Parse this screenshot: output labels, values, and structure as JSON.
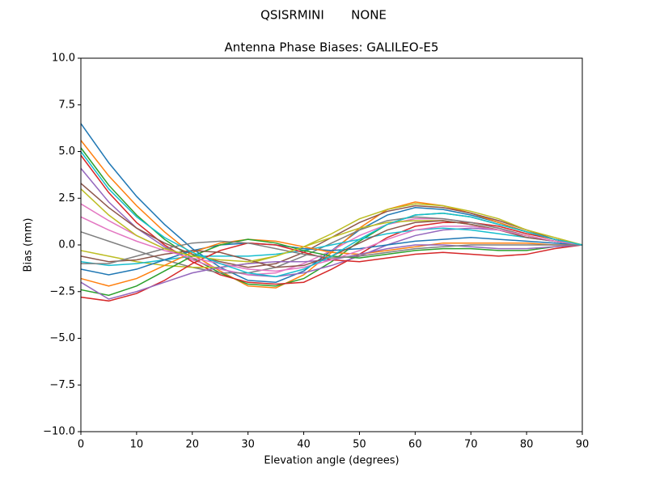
{
  "chart_data": {
    "type": "line",
    "suptitle": "QSISRMINI       NONE",
    "title": "Antenna Phase Biases: GALILEO-E5",
    "xlabel": "Elevation angle (degrees)",
    "ylabel": "Bias (mm)",
    "x": [
      0,
      5,
      10,
      15,
      20,
      25,
      30,
      35,
      40,
      45,
      50,
      55,
      60,
      65,
      70,
      75,
      80,
      85,
      90
    ],
    "xlim": [
      0,
      90
    ],
    "xticks": [
      0,
      10,
      20,
      30,
      40,
      50,
      60,
      70,
      80,
      90
    ],
    "ylim": [
      -10,
      10
    ],
    "yticks": [
      {
        "value": -10,
        "label": "−10.0"
      },
      {
        "value": -7.5,
        "label": "−7.5"
      },
      {
        "value": -5,
        "label": "−5.0"
      },
      {
        "value": -2.5,
        "label": "−2.5"
      },
      {
        "value": 0,
        "label": "0.0"
      },
      {
        "value": 2.5,
        "label": "2.5"
      },
      {
        "value": 5,
        "label": "5.0"
      },
      {
        "value": 7.5,
        "label": "7.5"
      },
      {
        "value": 10,
        "label": "10.0"
      }
    ],
    "series": [
      {
        "color": "#1f77b4",
        "values": [
          6.5,
          4.4,
          2.6,
          1.1,
          -0.2,
          -1.2,
          -1.9,
          -2.0,
          -1.4,
          -0.3,
          0.8,
          1.6,
          2.0,
          1.9,
          1.6,
          1.2,
          0.7,
          0.3,
          0
        ]
      },
      {
        "color": "#ff7f0e",
        "values": [
          5.6,
          3.7,
          2.1,
          0.7,
          -0.5,
          -1.4,
          -2.2,
          -2.3,
          -1.6,
          -0.4,
          0.9,
          1.9,
          2.3,
          2.1,
          1.7,
          1.2,
          0.7,
          0.3,
          0
        ]
      },
      {
        "color": "#2ca02c",
        "values": [
          5.2,
          3.2,
          1.6,
          0.3,
          -0.7,
          -1.5,
          -2.1,
          -2.2,
          -1.8,
          -0.9,
          0.2,
          1.1,
          1.6,
          1.7,
          1.5,
          1.1,
          0.7,
          0.3,
          0
        ]
      },
      {
        "color": "#d62728",
        "values": [
          4.8,
          2.8,
          1.2,
          0,
          -0.9,
          -1.6,
          -2.0,
          -2.1,
          -2.0,
          -1.3,
          -0.5,
          0.4,
          1.0,
          1.2,
          1.2,
          1.0,
          0.6,
          0.3,
          0
        ]
      },
      {
        "color": "#9467bd",
        "values": [
          4.1,
          2.3,
          0.9,
          -0.1,
          -0.8,
          -1.3,
          -1.6,
          -1.7,
          -1.5,
          -1.1,
          -0.6,
          0,
          0.5,
          0.8,
          0.9,
          0.8,
          0.5,
          0.2,
          0
        ]
      },
      {
        "color": "#8c564b",
        "values": [
          3.3,
          2.0,
          0.9,
          0.1,
          -0.5,
          -0.9,
          -1.2,
          -1.0,
          -0.4,
          0.4,
          1.2,
          1.8,
          2.1,
          2.0,
          1.7,
          1.3,
          0.8,
          0.3,
          0
        ]
      },
      {
        "color": "#e377c2",
        "values": [
          2.2,
          1.3,
          0.5,
          -0.2,
          -0.8,
          -1.3,
          -1.6,
          -1.5,
          -1.0,
          -0.3,
          0.5,
          1.1,
          1.4,
          1.4,
          1.2,
          0.9,
          0.5,
          0.2,
          0
        ]
      },
      {
        "color": "#7f7f7f",
        "values": [
          0.7,
          0.2,
          -0.3,
          -0.8,
          -1.2,
          -1.5,
          -1.5,
          -1.2,
          -0.6,
          0.1,
          0.8,
          1.3,
          1.5,
          1.4,
          1.2,
          0.9,
          0.5,
          0.2,
          0
        ]
      },
      {
        "color": "#bcbd22",
        "values": [
          -0.3,
          -0.6,
          -0.9,
          -1.1,
          -1.2,
          -1.2,
          -1.0,
          -0.6,
          -0.1,
          0.4,
          0.9,
          1.2,
          1.3,
          1.3,
          1.1,
          0.8,
          0.5,
          0.2,
          0
        ]
      },
      {
        "color": "#17becf",
        "values": [
          -0.9,
          -1.1,
          -1.0,
          -0.8,
          -0.6,
          -0.6,
          -0.6,
          -0.5,
          -0.3,
          0,
          0.3,
          0.6,
          0.8,
          0.9,
          0.8,
          0.6,
          0.4,
          0.2,
          0
        ]
      },
      {
        "color": "#1f77b4",
        "values": [
          -1.3,
          -1.6,
          -1.3,
          -0.8,
          -0.3,
          0,
          0.1,
          0,
          -0.2,
          -0.3,
          -0.2,
          0,
          0.2,
          0.3,
          0.4,
          0.3,
          0.2,
          0.1,
          0
        ]
      },
      {
        "color": "#ff7f0e",
        "values": [
          -1.8,
          -2.2,
          -1.8,
          -1.1,
          -0.4,
          0.1,
          0.3,
          0.2,
          -0.1,
          -0.4,
          -0.5,
          -0.3,
          -0.1,
          0.1,
          0.1,
          0.1,
          0.1,
          0,
          0
        ]
      },
      {
        "color": "#2ca02c",
        "values": [
          -2.4,
          -2.7,
          -2.2,
          -1.4,
          -0.6,
          0,
          0.3,
          0.1,
          -0.3,
          -0.6,
          -0.7,
          -0.5,
          -0.3,
          -0.2,
          -0.2,
          -0.3,
          -0.3,
          -0.1,
          0
        ]
      },
      {
        "color": "#d62728",
        "values": [
          -2.8,
          -3.0,
          -2.6,
          -1.9,
          -1.0,
          -0.3,
          0.1,
          0,
          -0.4,
          -0.8,
          -0.9,
          -0.7,
          -0.5,
          -0.4,
          -0.5,
          -0.6,
          -0.5,
          -0.2,
          0
        ]
      },
      {
        "color": "#9467bd",
        "values": [
          -2.0,
          -2.9,
          -2.5,
          -2.0,
          -1.5,
          -1.2,
          -1.0,
          -0.9,
          -0.9,
          -0.8,
          -0.5,
          -0.2,
          0,
          0,
          -0.1,
          -0.2,
          -0.2,
          -0.1,
          0
        ]
      },
      {
        "color": "#8c564b",
        "values": [
          -0.6,
          -0.9,
          -0.8,
          -0.5,
          -0.3,
          -0.4,
          -0.8,
          -1.2,
          -1.1,
          -0.6,
          0.1,
          0.8,
          1.2,
          1.3,
          1.1,
          0.8,
          0.4,
          0.2,
          0
        ]
      },
      {
        "color": "#e377c2",
        "values": [
          1.5,
          0.8,
          0.2,
          -0.3,
          -0.7,
          -1.0,
          -1.3,
          -1.4,
          -1.2,
          -0.8,
          -0.3,
          0.3,
          0.8,
          1.0,
          1.0,
          0.8,
          0.5,
          0.2,
          0
        ]
      },
      {
        "color": "#7f7f7f",
        "values": [
          -1.0,
          -1.0,
          -0.6,
          -0.2,
          0.1,
          0.2,
          0.1,
          -0.2,
          -0.5,
          -0.7,
          -0.6,
          -0.4,
          -0.2,
          -0.1,
          0,
          0,
          0,
          0,
          0
        ]
      },
      {
        "color": "#bcbd22",
        "values": [
          3.0,
          1.6,
          0.5,
          -0.2,
          -0.6,
          -0.8,
          -0.9,
          -0.6,
          -0.1,
          0.6,
          1.4,
          1.9,
          2.2,
          2.1,
          1.8,
          1.4,
          0.8,
          0.4,
          0
        ]
      },
      {
        "color": "#17becf",
        "values": [
          5.0,
          3.0,
          1.5,
          0.4,
          -0.4,
          -1.0,
          -1.5,
          -1.7,
          -1.3,
          -0.6,
          0.3,
          1.1,
          1.6,
          1.7,
          1.5,
          1.1,
          0.7,
          0.3,
          0
        ]
      }
    ]
  }
}
